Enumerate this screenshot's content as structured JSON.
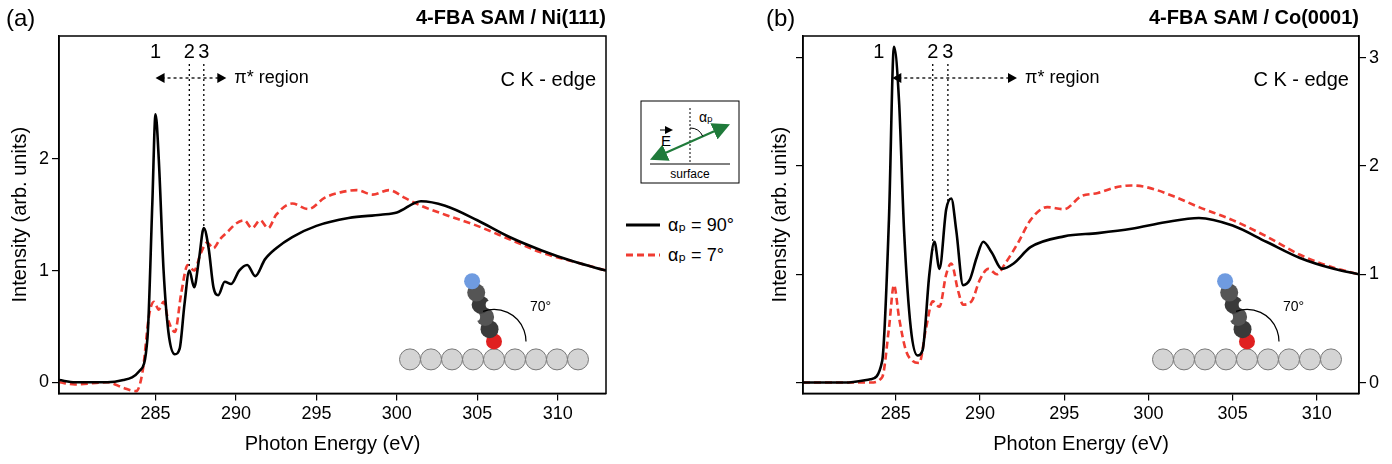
{
  "chart_data": [
    {
      "type": "line",
      "panel": "(a)",
      "title": "4-FBA SAM / Ni(111)",
      "edge_label": "C K - edge",
      "x_label": "Photon Energy (eV)",
      "y_label": "Intensity (arb. units)",
      "xlim": [
        279,
        313
      ],
      "xticks": [
        285,
        290,
        295,
        300,
        305,
        310
      ],
      "ylim": [
        -0.1,
        3.1
      ],
      "yticks": [
        0,
        1,
        2
      ],
      "grid": false,
      "legend": "right",
      "peaks": [
        {
          "label": "1",
          "x": 285.0
        },
        {
          "label": "2",
          "x": 287.1
        },
        {
          "label": "3",
          "x": 288.0
        }
      ],
      "region": {
        "label": "π* region",
        "from": 285.0,
        "to": 289.4
      },
      "inset_label": "70°",
      "series": [
        {
          "name": "αₚ = 90°",
          "color": "#000000",
          "line_style": "solid",
          "x": [
            279,
            280,
            282,
            283,
            284,
            284.5,
            284.8,
            285,
            285.2,
            285.5,
            285.8,
            286.2,
            286.5,
            286.8,
            287.1,
            287.4,
            287.7,
            288,
            288.3,
            288.6,
            288.9,
            289.3,
            289.7,
            290.2,
            290.7,
            291.2,
            291.8,
            292.5,
            293.5,
            295,
            297,
            299,
            300,
            301.5,
            303,
            305,
            307,
            309,
            311,
            313
          ],
          "values": [
            0.02,
            0,
            0,
            0.02,
            0.1,
            0.4,
            1.6,
            2.4,
            2.0,
            1.0,
            0.45,
            0.25,
            0.3,
            0.7,
            1.0,
            0.85,
            1.1,
            1.38,
            1.2,
            0.85,
            0.78,
            0.9,
            0.88,
            1.0,
            1.05,
            0.95,
            1.1,
            1.2,
            1.3,
            1.4,
            1.47,
            1.5,
            1.52,
            1.62,
            1.58,
            1.45,
            1.3,
            1.18,
            1.08,
            1.0
          ]
        },
        {
          "name": "αₚ = 7°",
          "color": "#f03c32",
          "line_style": "dashed",
          "x": [
            279,
            280,
            282,
            283,
            283.8,
            284.2,
            284.6,
            284.9,
            285.2,
            285.5,
            285.8,
            286.2,
            286.6,
            287,
            287.4,
            287.8,
            288.2,
            288.6,
            289,
            289.5,
            290,
            290.5,
            291,
            291.5,
            292,
            292.5,
            293.5,
            294.5,
            295.5,
            296.5,
            297.5,
            298.5,
            299.5,
            300.5,
            301.5,
            303,
            305,
            307,
            309,
            311,
            313
          ],
          "values": [
            0,
            -0.02,
            0,
            -0.05,
            -0.08,
            0.1,
            0.6,
            0.72,
            0.65,
            0.72,
            0.55,
            0.45,
            0.8,
            1.05,
            1.0,
            1.15,
            1.25,
            1.2,
            1.28,
            1.35,
            1.42,
            1.45,
            1.38,
            1.45,
            1.38,
            1.5,
            1.6,
            1.55,
            1.65,
            1.7,
            1.72,
            1.68,
            1.72,
            1.65,
            1.58,
            1.5,
            1.4,
            1.28,
            1.16,
            1.08,
            1.0
          ]
        }
      ]
    },
    {
      "type": "line",
      "panel": "(b)",
      "title": "4-FBA SAM / Co(0001)",
      "edge_label": "C K - edge",
      "x_label": "Photon Energy (eV)",
      "y_label": "Intensity (arb. units)",
      "xlim": [
        279.5,
        312.5
      ],
      "xticks": [
        285,
        290,
        295,
        300,
        305,
        310
      ],
      "ylim": [
        -0.1,
        3.2
      ],
      "yticks": [
        0,
        1,
        2,
        3
      ],
      "grid": false,
      "peaks": [
        {
          "label": "1",
          "x": 284.0
        },
        {
          "label": "2",
          "x": 287.2
        },
        {
          "label": "3",
          "x": 288.1
        }
      ],
      "region": {
        "label": "π* region",
        "from": 284.8,
        "to": 292.2
      },
      "inset_label": "70°",
      "series": [
        {
          "name": "αₚ = 90°",
          "color": "#000000",
          "line_style": "solid",
          "x": [
            279.5,
            282,
            283.5,
            284.2,
            284.6,
            284.9,
            285.2,
            285.5,
            285.9,
            286.3,
            286.6,
            287,
            287.3,
            287.6,
            288,
            288.3,
            288.6,
            289,
            289.4,
            289.8,
            290.2,
            290.7,
            291.3,
            292,
            293,
            295,
            297,
            299,
            301,
            303,
            305,
            307,
            309,
            311,
            312.5
          ],
          "values": [
            0,
            0,
            0.03,
            0.2,
            1.5,
            3.1,
            2.6,
            1.4,
            0.5,
            0.25,
            0.3,
            1.0,
            1.3,
            1.05,
            1.6,
            1.7,
            1.4,
            0.9,
            0.95,
            1.15,
            1.3,
            1.2,
            1.05,
            1.1,
            1.25,
            1.35,
            1.38,
            1.42,
            1.48,
            1.52,
            1.45,
            1.3,
            1.15,
            1.05,
            1.0
          ]
        },
        {
          "name": "αₚ = 7°",
          "color": "#f03c32",
          "line_style": "dashed",
          "x": [
            279.5,
            282,
            283.5,
            284.2,
            284.6,
            284.9,
            285.2,
            285.6,
            286,
            286.4,
            286.8,
            287.2,
            287.6,
            288,
            288.3,
            288.7,
            289,
            289.5,
            290,
            290.5,
            291,
            291.5,
            292.3,
            293,
            294,
            295,
            296,
            297,
            298,
            299,
            300,
            301.5,
            303,
            305,
            307,
            309,
            311,
            312.5
          ],
          "values": [
            0,
            0,
            0,
            0.05,
            0.5,
            0.9,
            0.6,
            0.3,
            0.2,
            0.18,
            0.5,
            0.75,
            0.7,
            1.0,
            1.1,
            0.85,
            0.72,
            0.75,
            0.95,
            1.05,
            1.0,
            1.1,
            1.3,
            1.5,
            1.62,
            1.6,
            1.72,
            1.75,
            1.8,
            1.82,
            1.8,
            1.72,
            1.62,
            1.5,
            1.35,
            1.18,
            1.06,
            1.0
          ]
        }
      ]
    }
  ],
  "inset": {
    "vector_label": "E",
    "angle_label": "αₚ",
    "surface_label": "surface"
  }
}
